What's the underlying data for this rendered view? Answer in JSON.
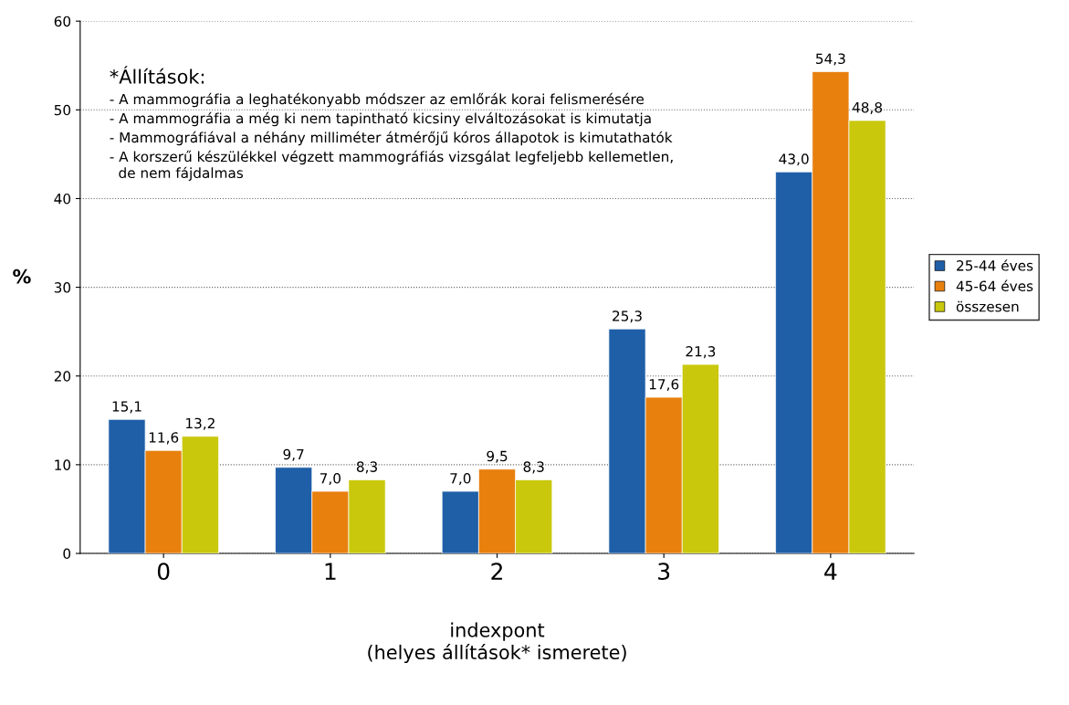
{
  "chart_data": {
    "type": "bar",
    "xlabel": "indexpont\n(helyes állítások* ismerete)",
    "ylabel": "%",
    "categories": [
      "0",
      "1",
      "2",
      "3",
      "4"
    ],
    "series": [
      {
        "name": "25-44 éves",
        "color": "#1f5fa8",
        "values": [
          15.1,
          9.7,
          7.0,
          25.3,
          43.0
        ],
        "value_labels": [
          "15,1",
          "9,7",
          "7,0",
          "25,3",
          "43,0"
        ]
      },
      {
        "name": "45-64 éves",
        "color": "#e8800e",
        "values": [
          11.6,
          7.0,
          9.5,
          17.6,
          54.3
        ],
        "value_labels": [
          "11,6",
          "7,0",
          "9,5",
          "17,6",
          "54,3"
        ]
      },
      {
        "name": "összesen",
        "color": "#c9c80c",
        "values": [
          13.2,
          8.3,
          8.3,
          21.3,
          48.8
        ],
        "value_labels": [
          "13,2",
          "8,3",
          "8,3",
          "21,3",
          "48,8"
        ]
      }
    ],
    "ylim": [
      0,
      60
    ],
    "yticks": [
      0,
      10,
      20,
      30,
      40,
      50,
      60
    ],
    "grid": "y",
    "legend": "right",
    "annotations": [
      "*Állítások:",
      "- A mammográfia a leghatékonyabb módszer az emlőrák korai felismerésére",
      "- A mammográfia a még ki nem tapintható kicsiny elváltozásokat is kimutatja",
      "- Mammográfiával a néhány milliméter átmérőjű kóros állapotok is kimutathatók",
      "- A korszerű készülékkel végzett mammográfiás vizsgálat legfeljebb kellemetlen,\n  de nem fájdalmas"
    ]
  }
}
